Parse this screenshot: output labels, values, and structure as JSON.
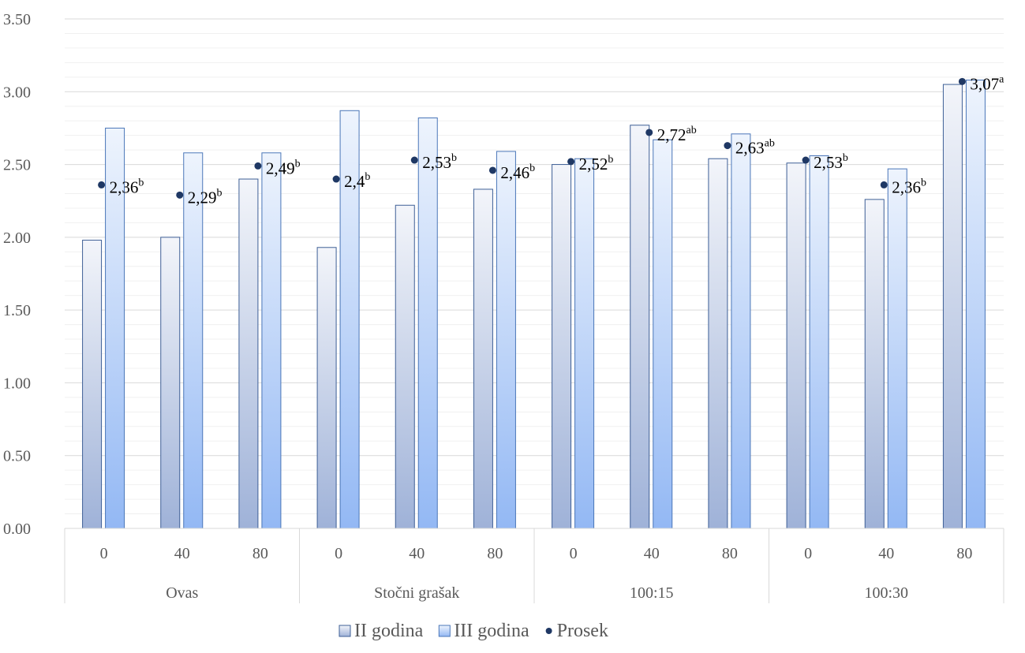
{
  "chart_data": {
    "type": "bar",
    "title": "",
    "xlabel": "",
    "ylabel": "",
    "ylim": [
      0,
      3.5
    ],
    "y_ticks": [
      "0.00",
      "0.50",
      "1.00",
      "1.50",
      "2.00",
      "2.50",
      "3.00",
      "3.50"
    ],
    "minor_grid": true,
    "legend_position": "bottom",
    "groups": [
      "Ovas",
      "Stočni grašak",
      "100:15",
      "100:30"
    ],
    "categories": [
      "0",
      "40",
      "80",
      "0",
      "40",
      "80",
      "0",
      "40",
      "80",
      "0",
      "40",
      "80"
    ],
    "series": [
      {
        "name": "II godina",
        "kind": "bar",
        "color": "#c9d2e6",
        "values": [
          1.98,
          2.0,
          2.4,
          1.93,
          2.22,
          2.33,
          2.5,
          2.77,
          2.54,
          2.51,
          2.26,
          3.05
        ]
      },
      {
        "name": "III godina",
        "kind": "bar",
        "color": "#c5d9f5",
        "values": [
          2.75,
          2.58,
          2.58,
          2.87,
          2.82,
          2.59,
          2.54,
          2.67,
          2.71,
          2.56,
          2.47,
          3.08
        ]
      },
      {
        "name": "Prosek",
        "kind": "point",
        "color": "#1f3864",
        "values": [
          2.36,
          2.29,
          2.49,
          2.4,
          2.53,
          2.46,
          2.52,
          2.72,
          2.63,
          2.53,
          2.36,
          3.07
        ],
        "labels": [
          "2,36",
          "2,29",
          "2,49",
          "2,4",
          "2,53",
          "2,46",
          "2,52",
          "2,72",
          "2,63",
          "2,53",
          "2,36",
          "3,07"
        ],
        "superscripts": [
          "b",
          "b",
          "b",
          "b",
          "b",
          "b",
          "b",
          "ab",
          "ab",
          "b",
          "b",
          "a"
        ]
      }
    ]
  }
}
